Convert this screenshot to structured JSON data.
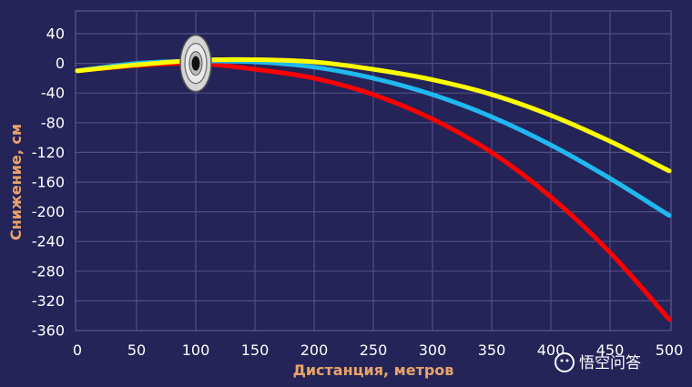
{
  "chart_data": {
    "type": "line",
    "title": "",
    "xlabel": "Дистанция, метров",
    "ylabel": "Снижение, см",
    "xlim": [
      0,
      500
    ],
    "ylim": [
      -360,
      40
    ],
    "xticks": [
      "0",
      "50",
      "100",
      "150",
      "200",
      "250",
      "300",
      "350",
      "400",
      "450",
      "500"
    ],
    "yticks": [
      "40",
      "0",
      "-40",
      "-80",
      "-120",
      "-160",
      "-200",
      "-240",
      "-280",
      "-320",
      "-360"
    ],
    "grid": true,
    "x": [
      0,
      50,
      100,
      150,
      200,
      250,
      300,
      350,
      400,
      450,
      500
    ],
    "series": [
      {
        "color": "#ff0000",
        "values": [
          -10,
          -3,
          0,
          -8,
          -20,
          -42,
          -75,
          -120,
          -180,
          -255,
          -345
        ]
      },
      {
        "color": "#20b8ee",
        "values": [
          -10,
          0,
          3,
          2,
          -5,
          -20,
          -42,
          -72,
          -110,
          -155,
          -205
        ]
      },
      {
        "color": "#ffff00",
        "values": [
          -10,
          -2,
          4,
          5,
          2,
          -8,
          -22,
          -42,
          -70,
          -105,
          -145
        ]
      }
    ],
    "target_at": 100
  },
  "colors": {
    "background": "#252458",
    "grid": "#4e4f85",
    "axis_title": "#e8a36a"
  },
  "watermark": "悟空问答"
}
